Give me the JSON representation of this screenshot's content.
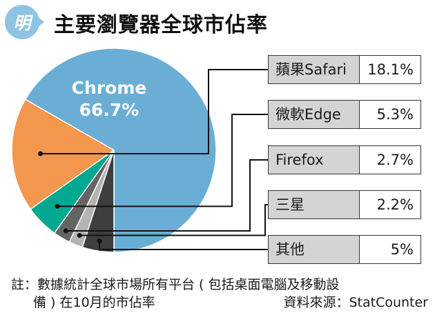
{
  "header": {
    "badge": "明",
    "title": "主要瀏覽器全球市佔率"
  },
  "chart_data": {
    "type": "pie",
    "title": "主要瀏覽器全球市佔率",
    "slices": [
      {
        "label": "Chrome",
        "value": 66.7,
        "value_label": "66.7%",
        "color": "#6aaed6"
      },
      {
        "label": "蘋果Safari",
        "value": 18.1,
        "value_label": "18.1%",
        "color": "#f2974d"
      },
      {
        "label": "微軟Edge",
        "value": 5.3,
        "value_label": "5.3%",
        "color": "#00a88f"
      },
      {
        "label": "Firefox",
        "value": 2.7,
        "value_label": "2.7%",
        "color": "#646464"
      },
      {
        "label": "三星",
        "value": 2.2,
        "value_label": "2.2%",
        "color": "#b4b4b4"
      },
      {
        "label": "其他",
        "value": 5,
        "value_label": "5%",
        "color": "#3e3e3e"
      }
    ],
    "legend_placement": "right"
  },
  "note": {
    "line1": "註：數據統計全球市場所有平台 ( 包括桌面電腦及移動設",
    "line2": "備 ) 在10月的市佔率",
    "source": "資料來源：StatCounter"
  }
}
